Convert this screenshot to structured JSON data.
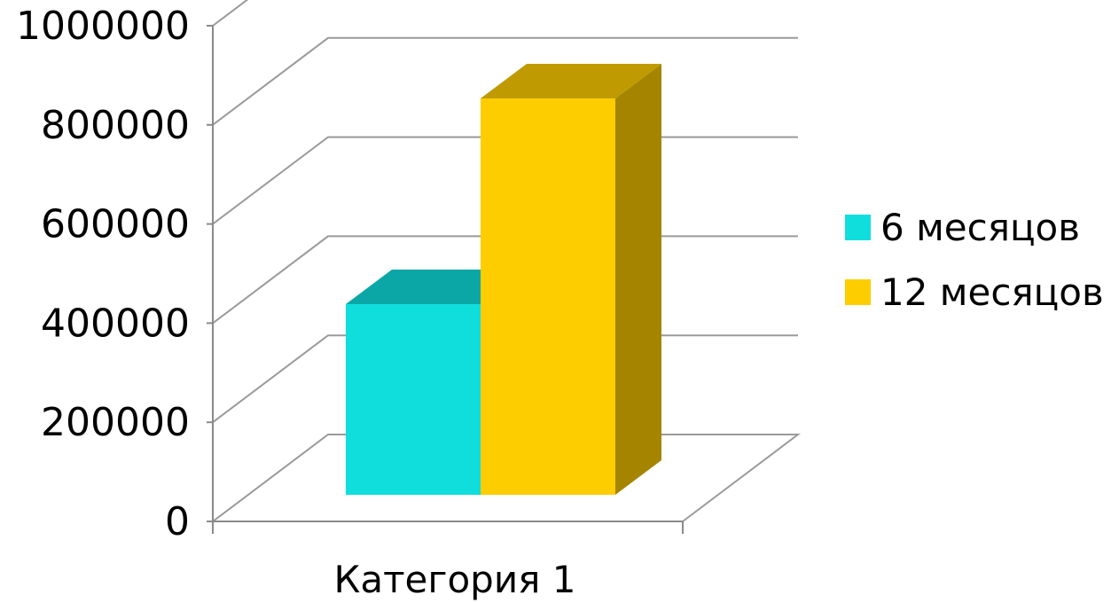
{
  "chart_data": {
    "type": "bar",
    "style": "3d-clustered-column",
    "title": "",
    "xlabel": "",
    "ylabel": "",
    "categories": [
      "Категория 1"
    ],
    "series": [
      {
        "name": "6 месяцов",
        "values": [
          415000
        ],
        "color": "#0fdedd"
      },
      {
        "name": "12 месяцов",
        "values": [
          830000
        ],
        "color": "#fecd00"
      }
    ],
    "ylim": [
      0,
      1000000
    ],
    "yticks": [
      0,
      200000,
      400000,
      600000,
      800000,
      1000000
    ],
    "ytick_labels": [
      "0",
      "200000",
      "400000",
      "600000",
      "800000",
      "1000000"
    ],
    "grid": true,
    "legend_position": "right"
  }
}
